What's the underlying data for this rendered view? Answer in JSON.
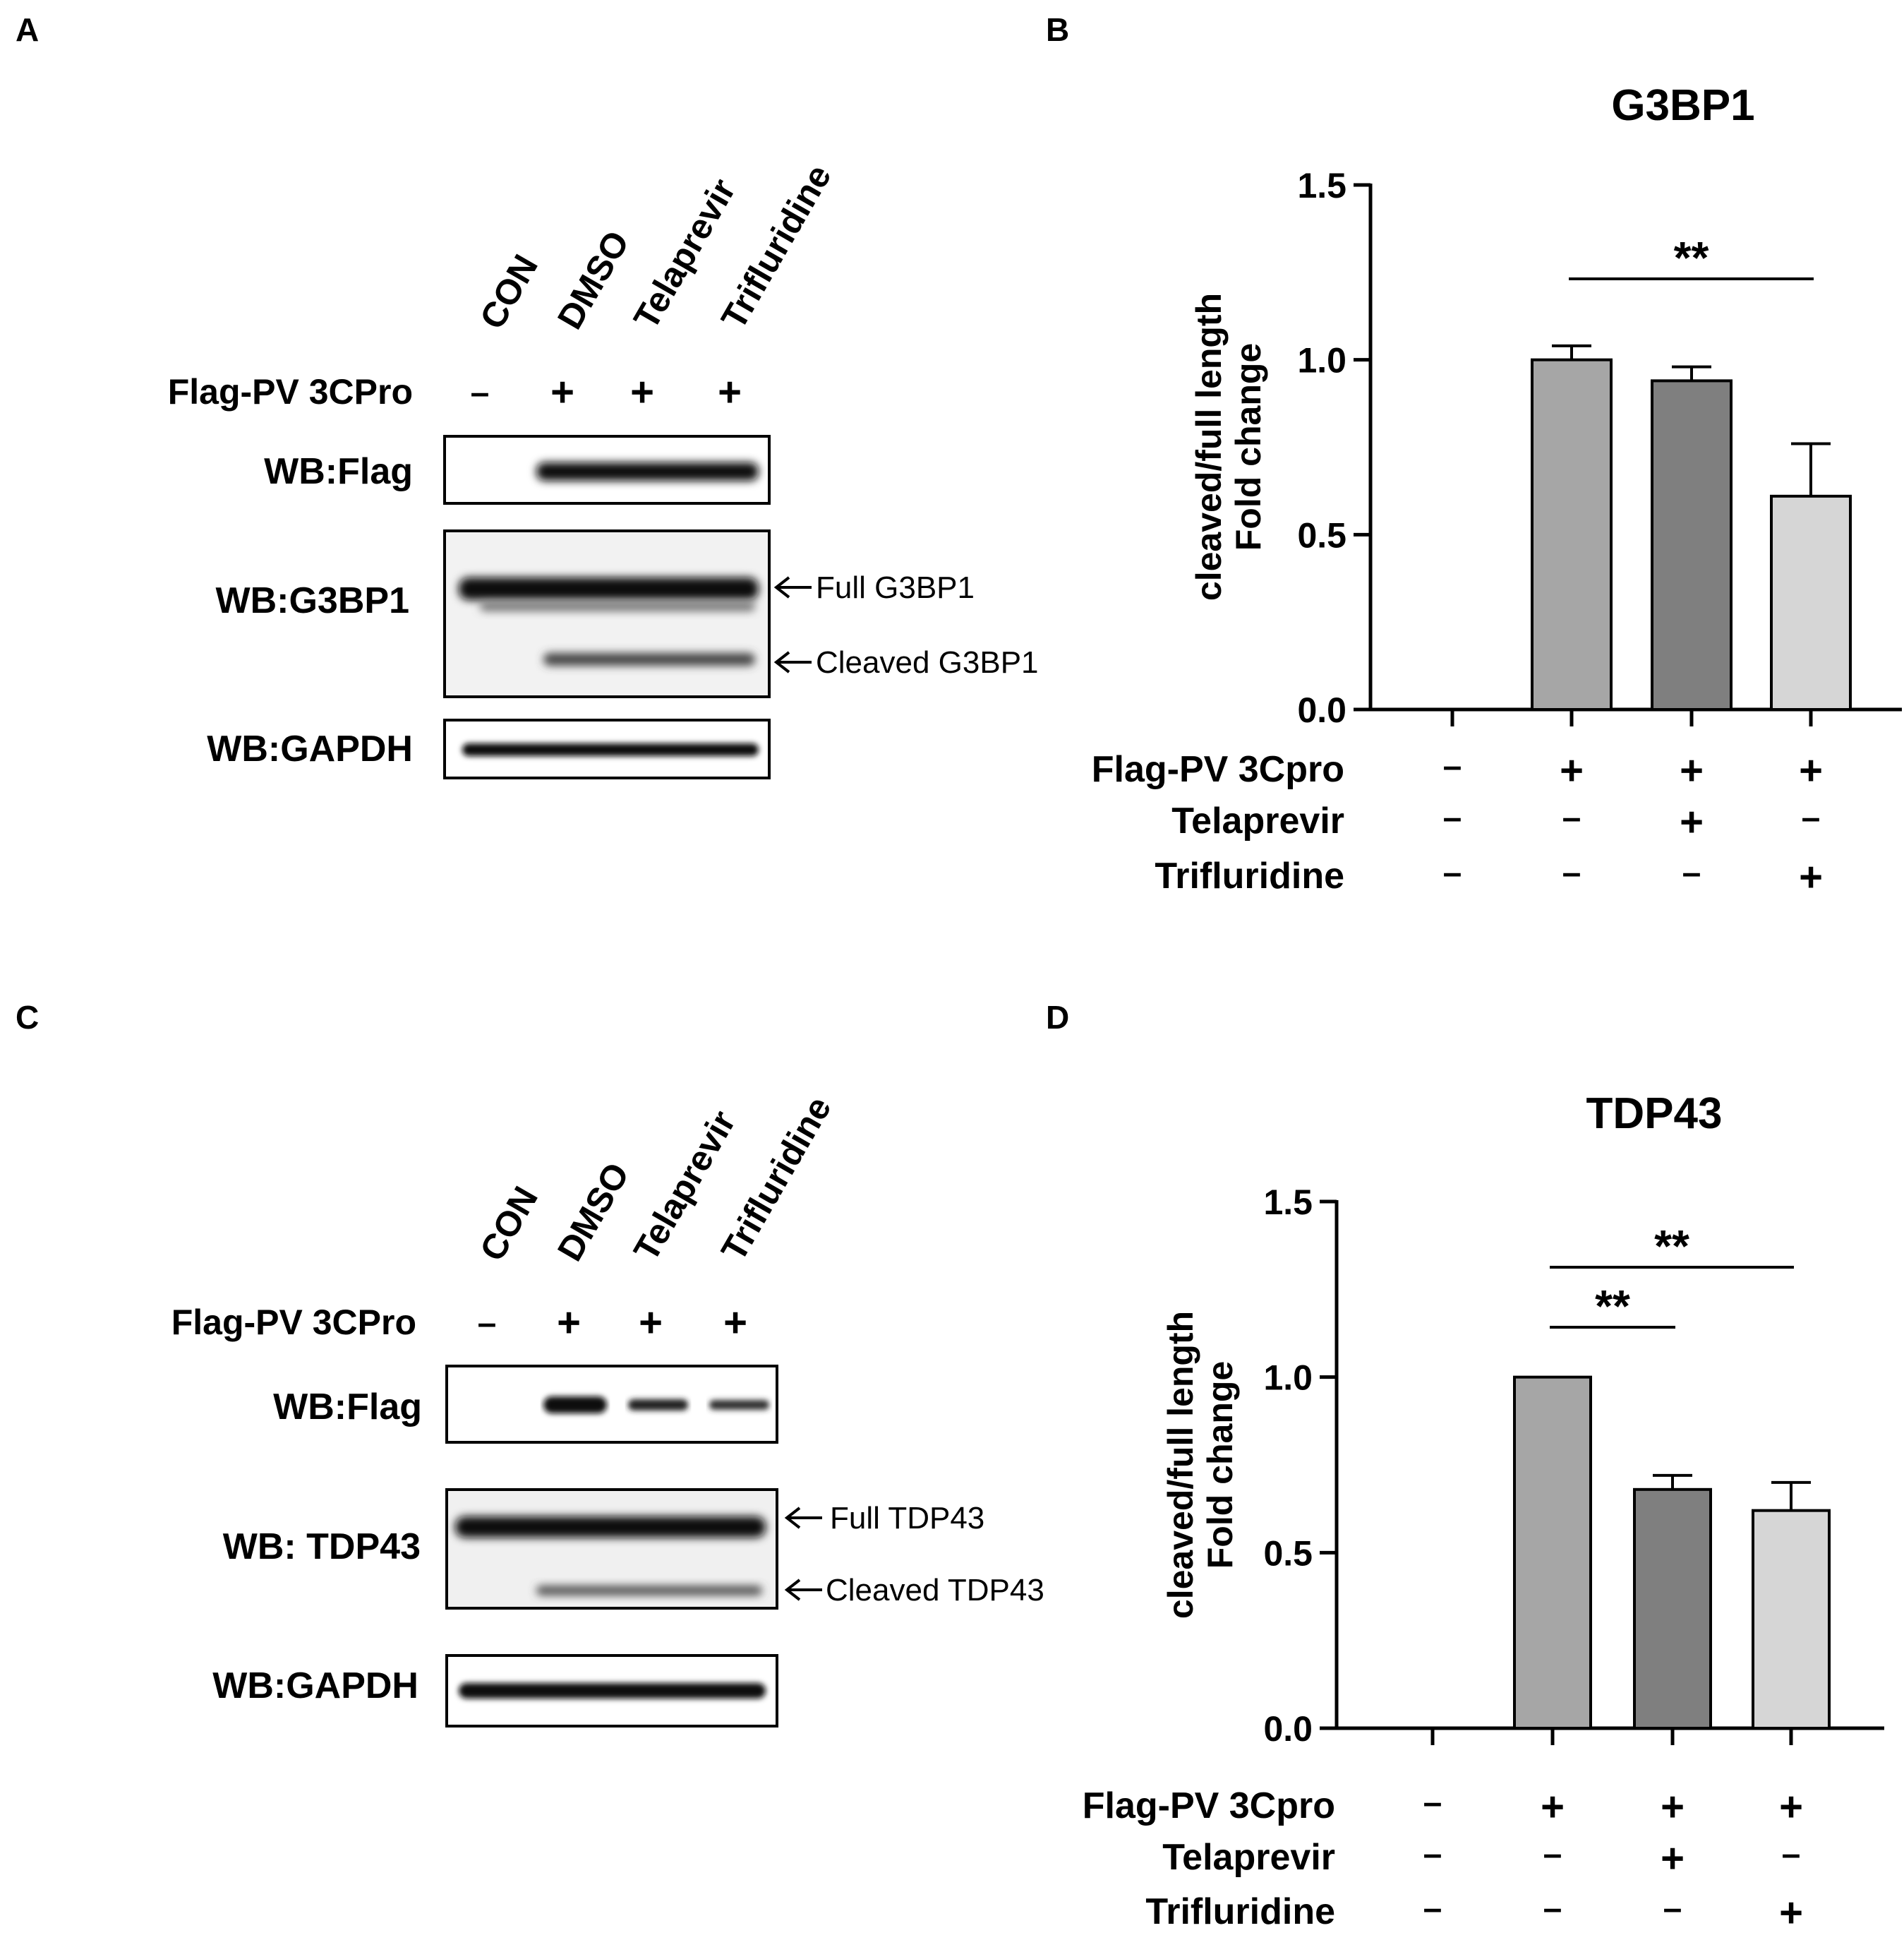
{
  "panels": {
    "A": {
      "letter": "A",
      "lanes": [
        "CON",
        "DMSO",
        "Telaprevir",
        "Trifluridine"
      ],
      "treatment_label": "Flag-PV 3CPro",
      "treatment_signs": [
        "–",
        "+",
        "+",
        "+"
      ],
      "blots": [
        {
          "label": "WB:Flag"
        },
        {
          "label": "WB:G3BP1",
          "annotations": [
            "Full G3BP1",
            "Cleaved G3BP1"
          ]
        },
        {
          "label": "WB:GAPDH"
        }
      ]
    },
    "C": {
      "letter": "C",
      "lanes": [
        "CON",
        "DMSO",
        "Telaprevir",
        "Trifluridine"
      ],
      "treatment_label": "Flag-PV 3CPro",
      "treatment_signs": [
        "–",
        "+",
        "+",
        "+"
      ],
      "blots": [
        {
          "label": "WB:Flag"
        },
        {
          "label": "WB: TDP43",
          "annotations": [
            "Full TDP43",
            "Cleaved TDP43"
          ]
        },
        {
          "label": "WB:GAPDH"
        }
      ]
    },
    "B": {
      "letter": "B"
    },
    "D": {
      "letter": "D"
    }
  },
  "chart_data": [
    {
      "panel": "B",
      "type": "bar",
      "title": "G3BP1",
      "ylabel": "cleaved/full length Fold change",
      "ylim": [
        0,
        1.5
      ],
      "yticks": [
        "0.0",
        "0.5",
        "1.0",
        "1.5"
      ],
      "values": [
        null,
        1.0,
        0.94,
        0.61
      ],
      "errors": [
        null,
        0.04,
        0.04,
        0.15
      ],
      "bar_colors": [
        null,
        "#a6a6a6",
        "#7f7f7f",
        "#d6d6d6"
      ],
      "significance": [
        {
          "from": 1,
          "to": 3,
          "label": "**"
        }
      ],
      "condition_rows": [
        {
          "label": "Flag-PV 3Cpro",
          "signs": [
            "–",
            "+",
            "+",
            "+"
          ]
        },
        {
          "label": "Telaprevir",
          "signs": [
            "–",
            "–",
            "+",
            "–"
          ]
        },
        {
          "label": "Trifluridine",
          "signs": [
            "–",
            "–",
            "–",
            "+"
          ]
        }
      ]
    },
    {
      "panel": "D",
      "type": "bar",
      "title": "TDP43",
      "ylabel": "cleaved/full length Fold change",
      "ylim": [
        0,
        1.5
      ],
      "yticks": [
        "0.0",
        "0.5",
        "1.0",
        "1.5"
      ],
      "values": [
        null,
        1.0,
        0.68,
        0.62
      ],
      "errors": [
        null,
        0.0,
        0.04,
        0.08
      ],
      "bar_colors": [
        null,
        "#a6a6a6",
        "#7f7f7f",
        "#d6d6d6"
      ],
      "significance": [
        {
          "from": 1,
          "to": 2,
          "label": "**"
        },
        {
          "from": 1,
          "to": 3,
          "label": "**"
        }
      ],
      "condition_rows": [
        {
          "label": "Flag-PV 3Cpro",
          "signs": [
            "–",
            "+",
            "+",
            "+"
          ]
        },
        {
          "label": "Telaprevir",
          "signs": [
            "–",
            "–",
            "+",
            "–"
          ]
        },
        {
          "label": "Trifluridine",
          "signs": [
            "–",
            "–",
            "–",
            "+"
          ]
        }
      ]
    }
  ]
}
